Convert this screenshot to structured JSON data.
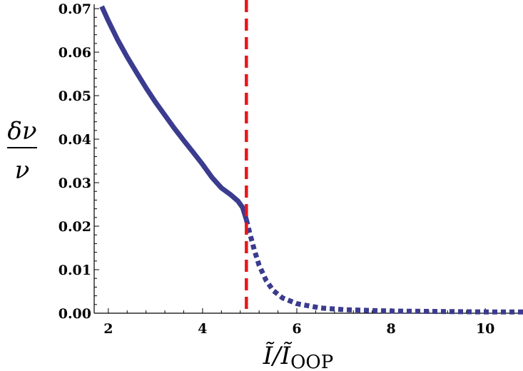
{
  "chart_data": {
    "type": "line",
    "xlabel": {
      "main": "Ĩ/Ĩ",
      "subscript": "OOP"
    },
    "ylabel": {
      "numerator": "δν",
      "denominator": "ν"
    },
    "xlim": [
      1.7,
      10.8
    ],
    "ylim": [
      0.0,
      0.071
    ],
    "x_ticks": [
      "2",
      "4",
      "6",
      "8",
      "10"
    ],
    "y_ticks": [
      "0.00",
      "0.01",
      "0.02",
      "0.03",
      "0.04",
      "0.05",
      "0.06",
      "0.07"
    ],
    "grid": false,
    "series": [
      {
        "style": "solid",
        "color": "#3b3b8f",
        "points": [
          [
            1.86,
            0.0705
          ],
          [
            2.0,
            0.0672
          ],
          [
            2.2,
            0.0628
          ],
          [
            2.4,
            0.0589
          ],
          [
            2.6,
            0.0553
          ],
          [
            2.8,
            0.0518
          ],
          [
            3.0,
            0.0485
          ],
          [
            3.2,
            0.0455
          ],
          [
            3.4,
            0.0425
          ],
          [
            3.6,
            0.0397
          ],
          [
            3.8,
            0.037
          ],
          [
            4.0,
            0.0342
          ],
          [
            4.2,
            0.0312
          ],
          [
            4.4,
            0.0288
          ],
          [
            4.6,
            0.0272
          ],
          [
            4.75,
            0.0258
          ],
          [
            4.85,
            0.0243
          ],
          [
            4.93,
            0.0215
          ]
        ]
      },
      {
        "style": "dotted",
        "color": "#3b3b8f",
        "points": [
          [
            4.93,
            0.0215
          ],
          [
            5.0,
            0.0185
          ],
          [
            5.1,
            0.0145
          ],
          [
            5.2,
            0.011
          ],
          [
            5.35,
            0.0075
          ],
          [
            5.5,
            0.0052
          ],
          [
            5.7,
            0.0035
          ],
          [
            6.0,
            0.0022
          ],
          [
            6.5,
            0.0012
          ],
          [
            7.0,
            0.0008
          ],
          [
            8.0,
            0.0005
          ],
          [
            9.0,
            0.0004
          ],
          [
            10.0,
            0.0003
          ],
          [
            10.8,
            0.0003
          ]
        ]
      }
    ],
    "vertical_line": {
      "x": 4.93,
      "color": "#e8161b",
      "style": "dashed"
    }
  }
}
